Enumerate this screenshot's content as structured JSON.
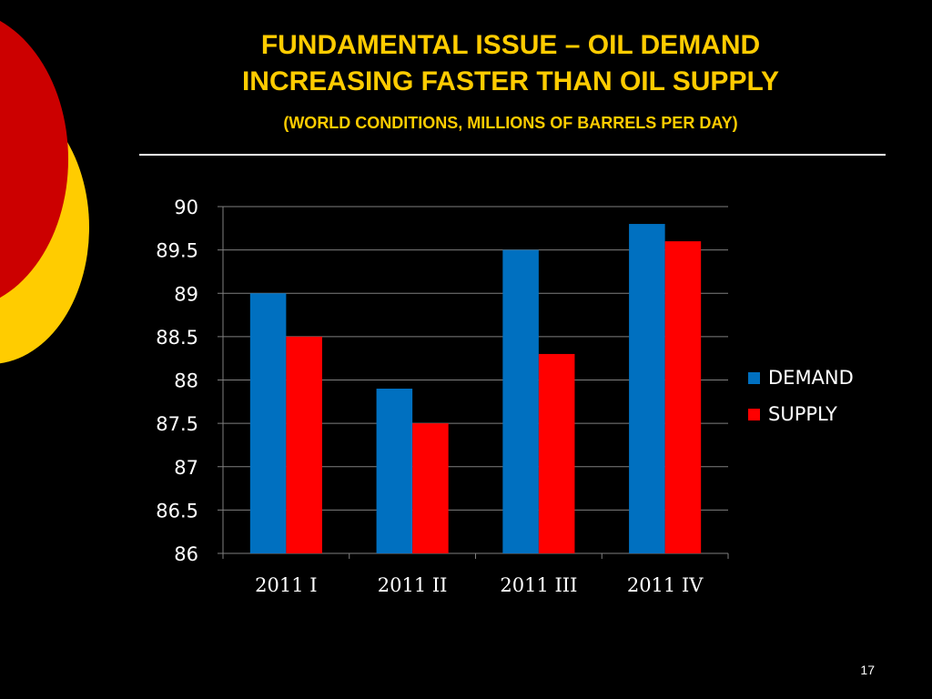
{
  "slide": {
    "title_line1": "FUNDAMENTAL ISSUE – OIL DEMAND",
    "title_line2": "INCREASING FASTER THAN OIL SUPPLY",
    "subtitle": "(WORLD CONDITIONS, MILLIONS OF BARRELS PER DAY)",
    "page_number": "17",
    "colors": {
      "background": "#000000",
      "title": "#ffcc00",
      "decor_red": "#cc0000",
      "decor_yellow": "#ffcc00"
    }
  },
  "chart_data": {
    "type": "bar",
    "categories": [
      "2011 I",
      "2011 II",
      "2011 III",
      "2011 IV"
    ],
    "series": [
      {
        "name": "DEMAND",
        "color": "#0070c0",
        "values": [
          89.0,
          87.9,
          89.5,
          89.8
        ]
      },
      {
        "name": "SUPPLY",
        "color": "#ff0000",
        "values": [
          88.5,
          87.5,
          88.3,
          89.6
        ]
      }
    ],
    "ylim": [
      86,
      90
    ],
    "yticks": [
      "86",
      "86.5",
      "87",
      "87.5",
      "88",
      "88.5",
      "89",
      "89.5",
      "90"
    ],
    "grid": true,
    "legend_position": "right"
  }
}
